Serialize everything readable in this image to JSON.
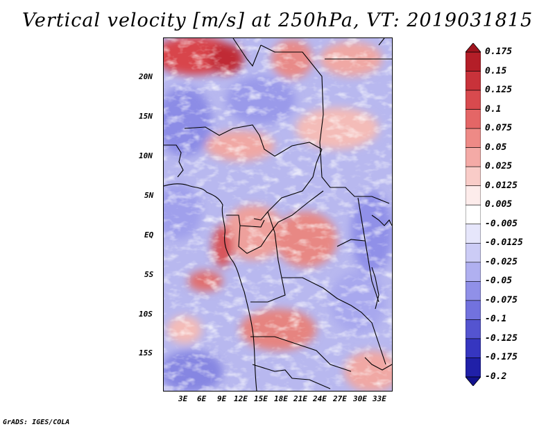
{
  "title": "Vertical velocity [m/s] at 250hPa, VT: 2019031815",
  "credit": "GrADS: IGES/COLA",
  "lat_labels": [
    "20N",
    "15N",
    "10N",
    "5N",
    "EQ",
    "5S",
    "10S",
    "15S"
  ],
  "lon_labels": [
    "3E",
    "6E",
    "9E",
    "12E",
    "15E",
    "18E",
    "21E",
    "24E",
    "27E",
    "30E",
    "33E"
  ],
  "colorbar": {
    "labels": [
      "0.175",
      "0.15",
      "0.125",
      "0.1",
      "0.075",
      "0.05",
      "0.025",
      "0.0125",
      "0.005",
      "-0.005",
      "-0.0125",
      "-0.025",
      "-0.05",
      "-0.075",
      "-0.1",
      "-0.125",
      "-0.175",
      "-0.2"
    ],
    "colors": [
      "#a0141e",
      "#b41e28",
      "#c8323a",
      "#d84a4e",
      "#e46666",
      "#ee8a86",
      "#f4aaa6",
      "#f9ccc8",
      "#fdeceb",
      "#ffffff",
      "#e6e6fb",
      "#ccccf6",
      "#b0b0f0",
      "#9090e8",
      "#7272de",
      "#5454d0",
      "#3636c0",
      "#2020a8",
      "#12128e"
    ]
  }
}
